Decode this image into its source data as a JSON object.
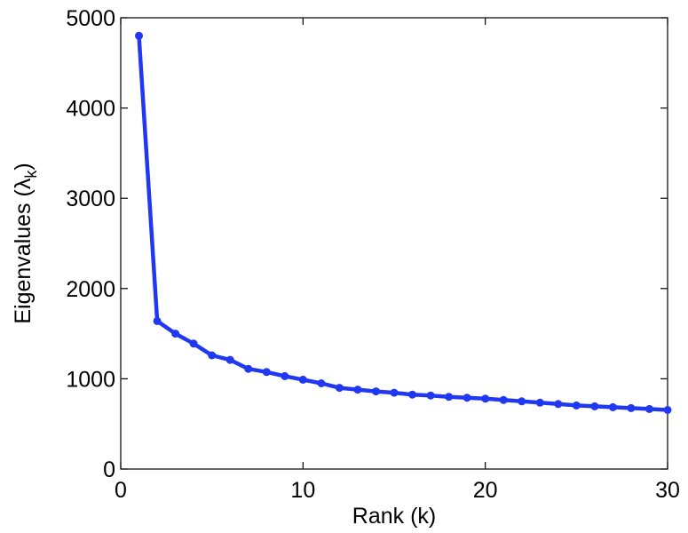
{
  "chart_data": {
    "type": "line",
    "title": "",
    "xlabel": "Rank (k)",
    "ylabel": {
      "main": "Eigenvalues (",
      "symbol": "λ",
      "subscript": "k",
      "close": ")"
    },
    "xlim": [
      0,
      30
    ],
    "ylim": [
      0,
      5000
    ],
    "xticks": [
      0,
      10,
      20,
      30
    ],
    "yticks": [
      0,
      1000,
      2000,
      3000,
      4000,
      5000
    ],
    "grid": false,
    "legend": "none",
    "line_color": "#2138f2",
    "series": [
      {
        "x": [
          1,
          2,
          3,
          4,
          5,
          6,
          7,
          8,
          9,
          10,
          11,
          12,
          13,
          14,
          15,
          16,
          17,
          18,
          19,
          20,
          21,
          22,
          23,
          24,
          25,
          26,
          27,
          28,
          29,
          30
        ],
        "values": [
          4800,
          1640,
          1500,
          1390,
          1260,
          1210,
          1110,
          1075,
          1030,
          990,
          950,
          900,
          880,
          860,
          845,
          825,
          815,
          800,
          790,
          780,
          765,
          750,
          735,
          720,
          705,
          695,
          685,
          675,
          665,
          655
        ]
      }
    ]
  }
}
